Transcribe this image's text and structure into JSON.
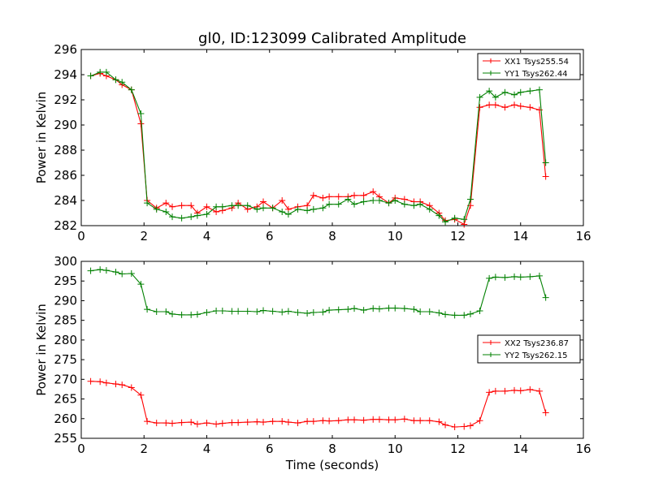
{
  "chart_data": [
    {
      "type": "line",
      "title": "gl0, ID:123099 Calibrated Amplitude",
      "xlabel": "",
      "ylabel": "Power in Kelvin",
      "xlim": [
        0,
        16
      ],
      "ylim": [
        282,
        296
      ],
      "xticks": [
        "0",
        "2",
        "4",
        "6",
        "8",
        "10",
        "12",
        "14",
        "16"
      ],
      "yticks": [
        "282",
        "284",
        "286",
        "288",
        "290",
        "292",
        "294",
        "296"
      ],
      "grid": false,
      "legend_position": "top-right",
      "x": [
        0.3,
        0.6,
        0.8,
        1.1,
        1.3,
        1.6,
        1.9,
        2.1,
        2.4,
        2.7,
        2.9,
        3.2,
        3.5,
        3.7,
        4.0,
        4.3,
        4.5,
        4.8,
        5.0,
        5.3,
        5.6,
        5.8,
        6.1,
        6.4,
        6.6,
        6.9,
        7.2,
        7.4,
        7.7,
        7.9,
        8.2,
        8.5,
        8.7,
        9.0,
        9.3,
        9.5,
        9.8,
        10.0,
        10.3,
        10.6,
        10.8,
        11.1,
        11.4,
        11.6,
        11.9,
        12.2,
        12.4,
        12.7,
        13.0,
        13.2,
        13.5,
        13.8,
        14.0,
        14.3,
        14.6,
        14.8
      ],
      "series": [
        {
          "name": "XX1 Tsys255.54",
          "color": "#ff0000",
          "values": [
            293.9,
            294.1,
            293.9,
            293.6,
            293.2,
            292.8,
            290.1,
            284.0,
            283.4,
            283.8,
            283.5,
            283.6,
            283.6,
            283.0,
            283.5,
            283.1,
            283.2,
            283.4,
            283.8,
            283.3,
            283.5,
            283.9,
            283.4,
            284.0,
            283.3,
            283.5,
            283.6,
            284.4,
            284.2,
            284.3,
            284.3,
            284.3,
            284.4,
            284.4,
            284.7,
            284.3,
            283.8,
            284.2,
            284.1,
            283.9,
            283.9,
            283.6,
            283.0,
            282.4,
            282.5,
            282.1,
            283.6,
            291.4,
            291.6,
            291.6,
            291.4,
            291.6,
            291.5,
            291.4,
            291.2,
            285.9
          ]
        },
        {
          "name": "YY1 Tsys262.44",
          "color": "#008000",
          "values": [
            293.9,
            294.2,
            294.2,
            293.6,
            293.4,
            292.8,
            290.9,
            283.8,
            283.3,
            283.1,
            282.7,
            282.6,
            282.7,
            282.8,
            282.9,
            283.5,
            283.5,
            283.6,
            283.6,
            283.6,
            283.3,
            283.4,
            283.4,
            283.1,
            282.9,
            283.3,
            283.2,
            283.3,
            283.4,
            283.7,
            283.7,
            284.1,
            283.7,
            283.9,
            284.0,
            284.0,
            283.8,
            284.0,
            283.7,
            283.6,
            283.7,
            283.3,
            282.8,
            282.3,
            282.6,
            282.5,
            284.1,
            292.2,
            292.7,
            292.2,
            292.6,
            292.4,
            292.6,
            292.7,
            292.8,
            287.0
          ]
        }
      ]
    },
    {
      "type": "line",
      "title": "",
      "xlabel": "Time (seconds)",
      "ylabel": "Power in Kelvin",
      "xlim": [
        0,
        16
      ],
      "ylim": [
        255,
        300
      ],
      "xticks": [
        "0",
        "2",
        "4",
        "6",
        "8",
        "10",
        "12",
        "14",
        "16"
      ],
      "yticks": [
        "255",
        "260",
        "265",
        "270",
        "275",
        "280",
        "285",
        "290",
        "295",
        "300"
      ],
      "grid": false,
      "legend_position": "center-right",
      "x": [
        0.3,
        0.6,
        0.8,
        1.1,
        1.3,
        1.6,
        1.9,
        2.1,
        2.4,
        2.7,
        2.9,
        3.2,
        3.5,
        3.7,
        4.0,
        4.3,
        4.5,
        4.8,
        5.0,
        5.3,
        5.6,
        5.8,
        6.1,
        6.4,
        6.6,
        6.9,
        7.2,
        7.4,
        7.7,
        7.9,
        8.2,
        8.5,
        8.7,
        9.0,
        9.3,
        9.5,
        9.8,
        10.0,
        10.3,
        10.6,
        10.8,
        11.1,
        11.4,
        11.6,
        11.9,
        12.2,
        12.4,
        12.7,
        13.0,
        13.2,
        13.5,
        13.8,
        14.0,
        14.3,
        14.6,
        14.8
      ],
      "series": [
        {
          "name": "XX2 Tsys236.87",
          "color": "#ff0000",
          "values": [
            269.5,
            269.4,
            269.1,
            268.8,
            268.6,
            267.9,
            266.0,
            259.3,
            258.9,
            258.9,
            258.8,
            259.0,
            259.1,
            258.6,
            258.9,
            258.6,
            258.8,
            259.0,
            259.0,
            259.1,
            259.2,
            259.1,
            259.3,
            259.3,
            259.1,
            258.9,
            259.3,
            259.3,
            259.5,
            259.4,
            259.5,
            259.7,
            259.7,
            259.6,
            259.8,
            259.8,
            259.7,
            259.7,
            259.9,
            259.5,
            259.5,
            259.5,
            259.2,
            258.4,
            257.9,
            258.0,
            258.2,
            259.5,
            266.7,
            267.0,
            267.0,
            267.2,
            267.1,
            267.4,
            267.0,
            261.5
          ]
        },
        {
          "name": "YY2 Tsys262.15",
          "color": "#008000",
          "values": [
            297.6,
            297.9,
            297.7,
            297.3,
            296.8,
            296.9,
            294.2,
            287.8,
            287.2,
            287.2,
            286.6,
            286.4,
            286.4,
            286.5,
            287.0,
            287.4,
            287.4,
            287.3,
            287.3,
            287.3,
            287.2,
            287.5,
            287.3,
            287.1,
            287.3,
            287.0,
            286.8,
            287.0,
            287.1,
            287.6,
            287.7,
            287.8,
            288.0,
            287.6,
            288.0,
            287.9,
            288.1,
            288.1,
            288.0,
            287.8,
            287.2,
            287.2,
            286.9,
            286.5,
            286.3,
            286.3,
            286.6,
            287.4,
            295.7,
            296.0,
            295.9,
            296.1,
            296.0,
            296.1,
            296.3,
            290.8
          ]
        }
      ]
    }
  ]
}
